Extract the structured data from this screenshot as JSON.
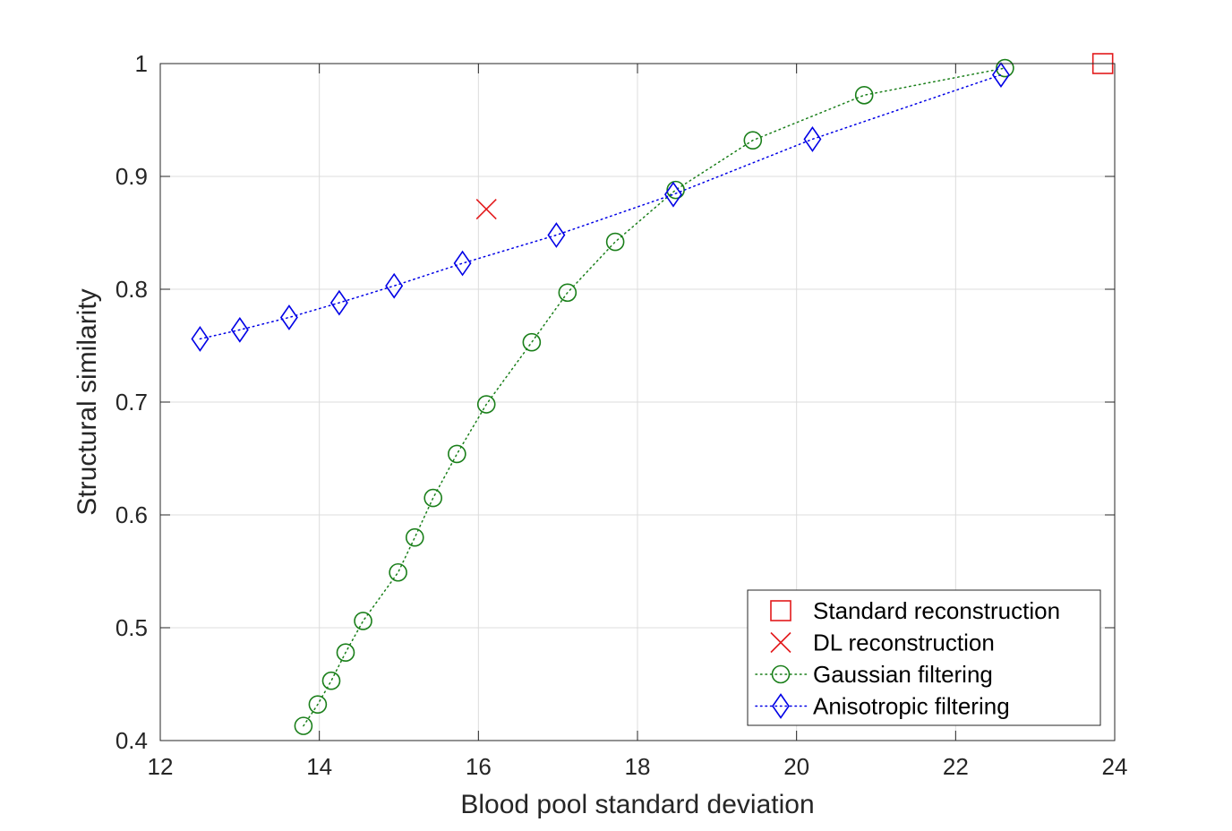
{
  "chart_data": {
    "type": "scatter",
    "title": "",
    "xlabel": "Blood pool standard deviation",
    "ylabel": "Structural similarity",
    "xlim": [
      12,
      24
    ],
    "ylim": [
      0.4,
      1
    ],
    "xticks": [
      12,
      14,
      16,
      18,
      20,
      22,
      24
    ],
    "yticks": [
      0.4,
      0.5,
      0.6,
      0.7,
      0.8,
      0.9,
      1
    ],
    "xtick_labels": [
      "12",
      "14",
      "16",
      "18",
      "20",
      "22",
      "24"
    ],
    "ytick_labels": [
      "0.4",
      "0.5",
      "0.6",
      "0.7",
      "0.8",
      "0.9",
      "1"
    ],
    "grid": true,
    "legend_position": "bottom-right",
    "series": [
      {
        "name": "Standard reconstruction",
        "marker": "square",
        "line": "none",
        "color": "#e31a1c",
        "x": [
          23.85
        ],
        "y": [
          1.0
        ]
      },
      {
        "name": "DL reconstruction",
        "marker": "x",
        "line": "none",
        "color": "#e31a1c",
        "x": [
          16.1
        ],
        "y": [
          0.871
        ]
      },
      {
        "name": "Gaussian filtering",
        "marker": "circle",
        "line": "dotted",
        "color": "#1a7f1a",
        "x": [
          13.8,
          13.98,
          14.15,
          14.33,
          14.55,
          14.99,
          15.2,
          15.43,
          15.73,
          16.1,
          16.67,
          17.12,
          17.72,
          18.48,
          19.45,
          20.85,
          22.62
        ],
        "y": [
          0.413,
          0.432,
          0.453,
          0.478,
          0.506,
          0.549,
          0.58,
          0.615,
          0.654,
          0.698,
          0.753,
          0.797,
          0.842,
          0.888,
          0.932,
          0.972,
          0.996
        ]
      },
      {
        "name": "Anisotropic filtering",
        "marker": "diamond",
        "line": "dotted",
        "color": "#0000e6",
        "x": [
          12.5,
          13.0,
          13.62,
          14.25,
          14.94,
          15.8,
          16.98,
          18.45,
          20.2,
          22.57
        ],
        "y": [
          0.756,
          0.764,
          0.775,
          0.788,
          0.803,
          0.823,
          0.848,
          0.884,
          0.933,
          0.99
        ]
      }
    ]
  }
}
